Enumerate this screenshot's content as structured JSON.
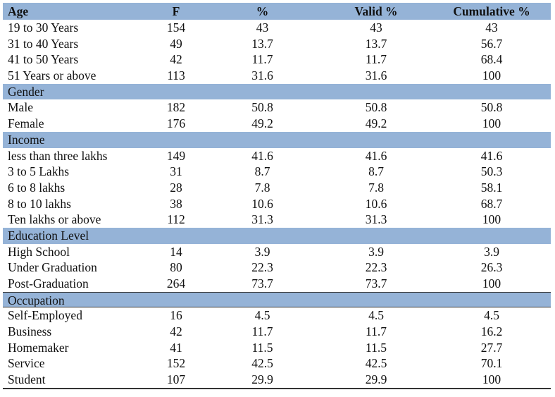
{
  "header": {
    "label": "Age",
    "f": "F",
    "pct": "%",
    "valid": "Valid %",
    "cum": "Cumulative %"
  },
  "groups": [
    {
      "title": "",
      "rows": [
        {
          "label": "19 to 30 Years",
          "f": "154",
          "pct": "43",
          "valid": "43",
          "cum": "43"
        },
        {
          "label": "31 to 40 Years",
          "f": "49",
          "pct": "13.7",
          "valid": "13.7",
          "cum": "56.7"
        },
        {
          "label": "41 to 50 Years",
          "f": "42",
          "pct": "11.7",
          "valid": "11.7",
          "cum": "68.4"
        },
        {
          "label": "51 Years or above",
          "f": "113",
          "pct": "31.6",
          "valid": "31.6",
          "cum": "100"
        }
      ]
    },
    {
      "title": "Gender",
      "rows": [
        {
          "label": "Male",
          "f": "182",
          "pct": "50.8",
          "valid": "50.8",
          "cum": "50.8"
        },
        {
          "label": "Female",
          "f": "176",
          "pct": "49.2",
          "valid": "49.2",
          "cum": "100"
        }
      ]
    },
    {
      "title": "Income",
      "rows": [
        {
          "label": "less than three lakhs",
          "f": "149",
          "pct": "41.6",
          "valid": "41.6",
          "cum": "41.6"
        },
        {
          "label": "3 to 5 Lakhs",
          "f": "31",
          "pct": "8.7",
          "valid": "8.7",
          "cum": "50.3"
        },
        {
          "label": "6 to 8 lakhs",
          "f": "28",
          "pct": "7.8",
          "valid": "7.8",
          "cum": "58.1"
        },
        {
          "label": "8 to 10 lakhs",
          "f": "38",
          "pct": "10.6",
          "valid": "10.6",
          "cum": "68.7"
        },
        {
          "label": "Ten lakhs or above",
          "f": "112",
          "pct": "31.3",
          "valid": "31.3",
          "cum": "100"
        }
      ]
    },
    {
      "title": "Education Level",
      "rows": [
        {
          "label": "High School",
          "f": "14",
          "pct": "3.9",
          "valid": "3.9",
          "cum": "3.9"
        },
        {
          "label": "Under Graduation",
          "f": "80",
          "pct": "22.3",
          "valid": "22.3",
          "cum": "26.3"
        },
        {
          "label": "Post-Graduation",
          "f": "264",
          "pct": "73.7",
          "valid": "73.7",
          "cum": "100"
        }
      ]
    },
    {
      "title": "Occupation",
      "rows": [
        {
          "label": "Self-Employed",
          "f": "16",
          "pct": "4.5",
          "valid": "4.5",
          "cum": "4.5"
        },
        {
          "label": "Business",
          "f": "42",
          "pct": "11.7",
          "valid": "11.7",
          "cum": "16.2"
        },
        {
          "label": "Homemaker",
          "f": "41",
          "pct": "11.5",
          "valid": "11.5",
          "cum": "27.7"
        },
        {
          "label": "Service",
          "f": "152",
          "pct": "42.5",
          "valid": "42.5",
          "cum": "70.1"
        },
        {
          "label": "Student",
          "f": "107",
          "pct": "29.9",
          "valid": "29.9",
          "cum": "100"
        }
      ]
    }
  ]
}
